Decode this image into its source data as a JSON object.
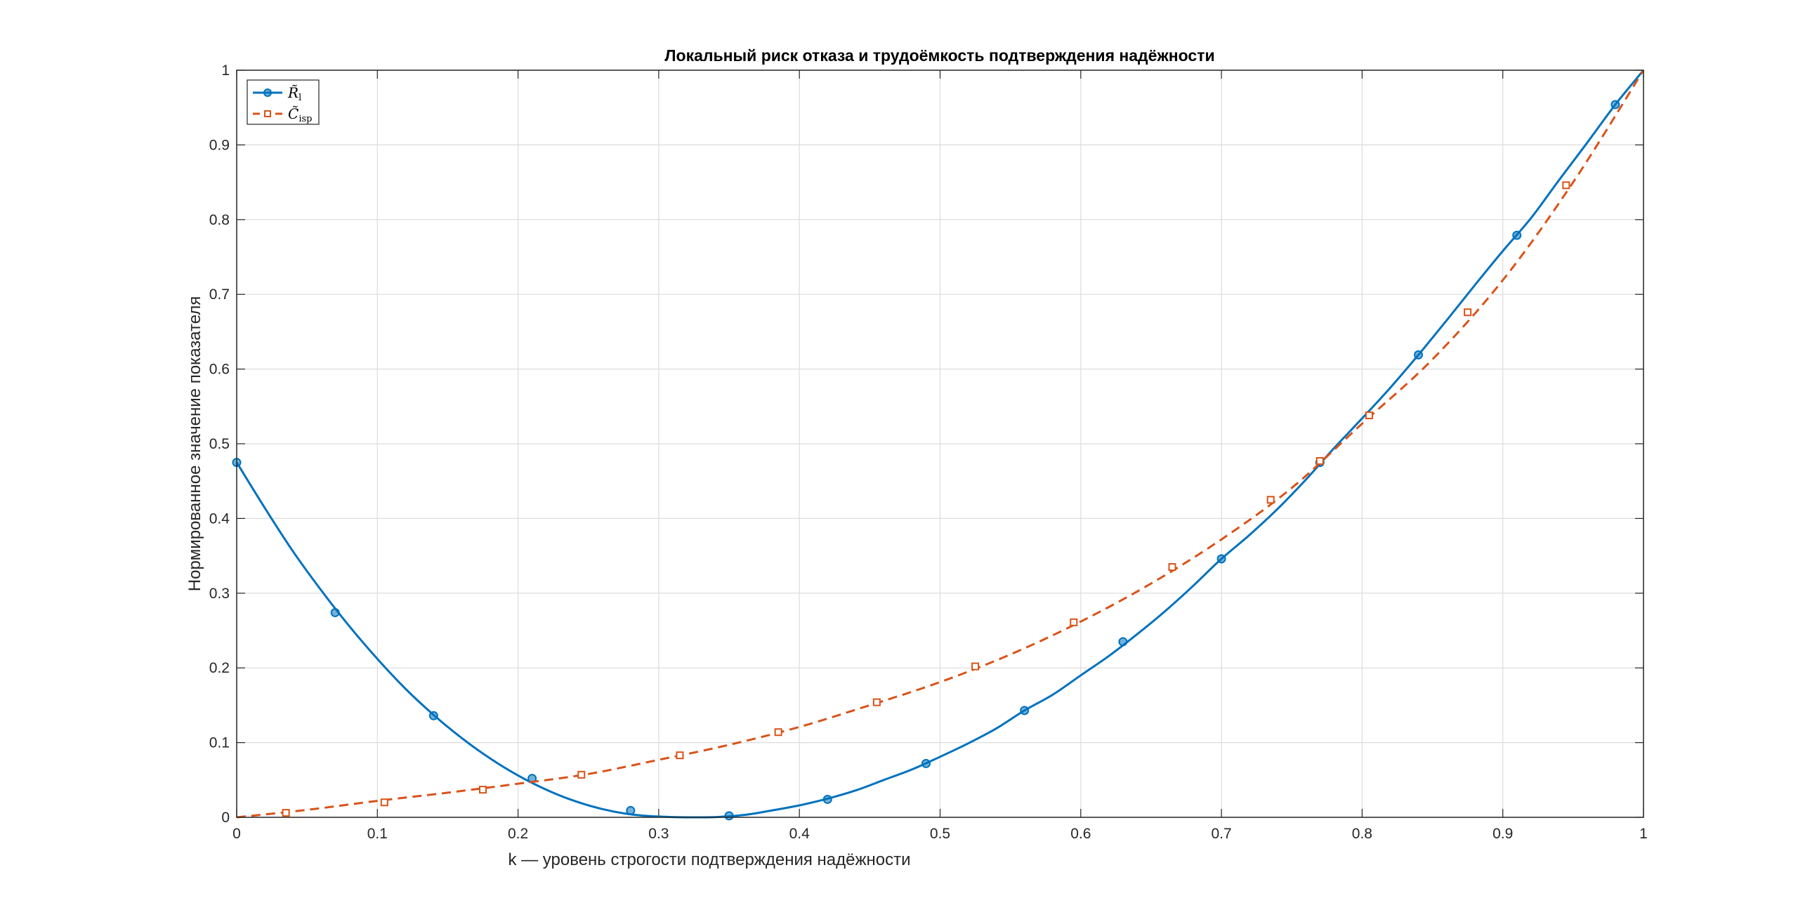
{
  "chart_data": {
    "type": "line",
    "title": "Локальный риск отказа и трудоёмкость подтверждения надёжности",
    "xlabel": "k — уровень строгости подтверждения надёжности",
    "ylabel": "Нормированное значение показателя",
    "xlim": [
      0,
      1
    ],
    "ylim": [
      0,
      1
    ],
    "xticks": [
      "0",
      "0.1",
      "0.2",
      "0.3",
      "0.4",
      "0.5",
      "0.6",
      "0.7",
      "0.8",
      "0.9",
      "1"
    ],
    "yticks": [
      "0",
      "0.1",
      "0.2",
      "0.3",
      "0.4",
      "0.5",
      "0.6",
      "0.7",
      "0.8",
      "0.9",
      "1"
    ],
    "grid": true,
    "legend_position": "top-left",
    "series": [
      {
        "name": "R̃",
        "name_sub": "l",
        "color": "#0072BD",
        "line_style": "solid",
        "marker": "circle",
        "curve": [
          [
            0,
            0.475
          ],
          [
            0.02,
            0.414
          ],
          [
            0.04,
            0.356
          ],
          [
            0.06,
            0.304
          ],
          [
            0.08,
            0.256
          ],
          [
            0.1,
            0.212
          ],
          [
            0.12,
            0.172
          ],
          [
            0.14,
            0.137
          ],
          [
            0.16,
            0.106
          ],
          [
            0.18,
            0.079
          ],
          [
            0.2,
            0.056
          ],
          [
            0.22,
            0.037
          ],
          [
            0.24,
            0.022
          ],
          [
            0.26,
            0.011
          ],
          [
            0.28,
            0.004
          ],
          [
            0.3,
            0.001
          ],
          [
            0.32,
            0
          ],
          [
            0.34,
            0.0003
          ],
          [
            0.36,
            0.003
          ],
          [
            0.38,
            0.009
          ],
          [
            0.4,
            0.016
          ],
          [
            0.42,
            0.025
          ],
          [
            0.44,
            0.036
          ],
          [
            0.46,
            0.05
          ],
          [
            0.48,
            0.064
          ],
          [
            0.5,
            0.081
          ],
          [
            0.52,
            0.099
          ],
          [
            0.54,
            0.119
          ],
          [
            0.56,
            0.143
          ],
          [
            0.58,
            0.164
          ],
          [
            0.6,
            0.19
          ],
          [
            0.62,
            0.216
          ],
          [
            0.64,
            0.245
          ],
          [
            0.66,
            0.276
          ],
          [
            0.68,
            0.31
          ],
          [
            0.7,
            0.346
          ],
          [
            0.72,
            0.378
          ],
          [
            0.74,
            0.413
          ],
          [
            0.76,
            0.452
          ],
          [
            0.78,
            0.494
          ],
          [
            0.8,
            0.534
          ],
          [
            0.82,
            0.575
          ],
          [
            0.84,
            0.619
          ],
          [
            0.86,
            0.665
          ],
          [
            0.88,
            0.712
          ],
          [
            0.9,
            0.758
          ],
          [
            0.92,
            0.802
          ],
          [
            0.94,
            0.853
          ],
          [
            0.96,
            0.903
          ],
          [
            0.98,
            0.954
          ],
          [
            1,
            1
          ]
        ],
        "markers": [
          [
            0,
            0.475
          ],
          [
            0.07,
            0.274
          ],
          [
            0.14,
            0.136
          ],
          [
            0.21,
            0.052
          ],
          [
            0.28,
            0.009
          ],
          [
            0.35,
            0.002
          ],
          [
            0.42,
            0.024
          ],
          [
            0.49,
            0.072
          ],
          [
            0.56,
            0.143
          ],
          [
            0.63,
            0.235
          ],
          [
            0.7,
            0.346
          ],
          [
            0.77,
            0.475
          ],
          [
            0.84,
            0.619
          ],
          [
            0.91,
            0.779
          ],
          [
            0.98,
            0.954
          ]
        ]
      },
      {
        "name": "C̃",
        "name_sub": "isp",
        "color": "#D95319",
        "line_style": "dashed",
        "marker": "square",
        "curve": [
          [
            0,
            0
          ],
          [
            0.05,
            0.01
          ],
          [
            0.1,
            0.022
          ],
          [
            0.15,
            0.033
          ],
          [
            0.2,
            0.045
          ],
          [
            0.25,
            0.058
          ],
          [
            0.3,
            0.077
          ],
          [
            0.35,
            0.097
          ],
          [
            0.4,
            0.121
          ],
          [
            0.45,
            0.15
          ],
          [
            0.5,
            0.181
          ],
          [
            0.55,
            0.218
          ],
          [
            0.6,
            0.262
          ],
          [
            0.65,
            0.313
          ],
          [
            0.7,
            0.372
          ],
          [
            0.75,
            0.441
          ],
          [
            0.8,
            0.527
          ],
          [
            0.85,
            0.613
          ],
          [
            0.9,
            0.719
          ],
          [
            0.95,
            0.85
          ],
          [
            1,
            1
          ]
        ],
        "markers": [
          [
            0.035,
            0.006
          ],
          [
            0.105,
            0.02
          ],
          [
            0.175,
            0.037
          ],
          [
            0.245,
            0.057
          ],
          [
            0.315,
            0.083
          ],
          [
            0.385,
            0.114
          ],
          [
            0.455,
            0.154
          ],
          [
            0.525,
            0.202
          ],
          [
            0.595,
            0.261
          ],
          [
            0.665,
            0.335
          ],
          [
            0.735,
            0.425
          ],
          [
            0.77,
            0.477
          ],
          [
            0.805,
            0.538
          ],
          [
            0.875,
            0.676
          ],
          [
            0.945,
            0.846
          ]
        ]
      }
    ]
  }
}
